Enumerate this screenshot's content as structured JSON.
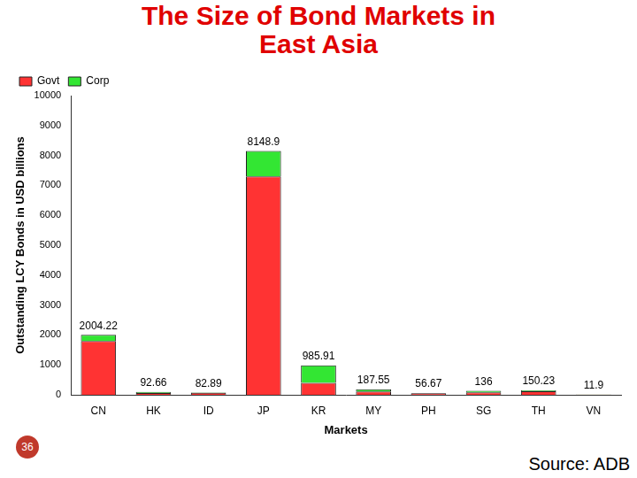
{
  "chart_data": {
    "type": "bar",
    "title": "The Size of Bond Markets in East Asia",
    "x_label": "Markets",
    "y_label": "Outstanding LCY Bonds in USD billions",
    "source": "Source: ADB",
    "slide_number": 36,
    "categories": [
      "CN",
      "HK",
      "ID",
      "JP",
      "KR",
      "MY",
      "PH",
      "SG",
      "TH",
      "VN"
    ],
    "series": [
      {
        "name": "Govt",
        "color": "#ff3333",
        "values": [
          1800,
          60,
          70,
          7300,
          400,
          110,
          50,
          80,
          120,
          11
        ]
      },
      {
        "name": "Corp",
        "color": "#33e633",
        "values": [
          204.22,
          32.66,
          12.89,
          848.9,
          585.91,
          77.55,
          6.67,
          56,
          30.23,
          0.9
        ]
      }
    ],
    "totals": [
      2004.22,
      92.66,
      82.89,
      8148.9,
      985.91,
      187.55,
      56.67,
      136,
      150.23,
      11.9
    ],
    "stacked": true,
    "legend": "top-left",
    "grid": false,
    "ylim": [
      0,
      10000
    ],
    "yticks": [
      0,
      1000,
      2000,
      3000,
      4000,
      5000,
      6000,
      7000,
      8000,
      9000,
      10000
    ]
  }
}
